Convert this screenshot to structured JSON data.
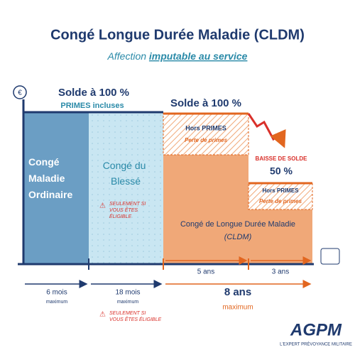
{
  "header": {
    "title": "Congé Longue Durée Maladie (CLDM)",
    "subtitle_prefix": "Affection",
    "subtitle_emphasis": "imputable au service"
  },
  "phases": [
    {
      "pay": "Solde à 100 %",
      "pay_note": "PRIMES incluses",
      "label_lines": [
        "Congé",
        "Maladie",
        "Ordinaire"
      ],
      "duration": "6 mois",
      "duration_note": "maximum"
    },
    {
      "label_lines": [
        "Congé du",
        "Blessé"
      ],
      "warning_lines": [
        "SEULEMENT SI",
        "VOUS ÊTES",
        "ÉLIGIBLE"
      ],
      "duration": "18 mois",
      "duration_note": "maximum",
      "footnote_lines": [
        "SEULEMENT SI",
        "VOUS ÊTES ÉLIGIBLE"
      ]
    },
    {
      "pay": "Solde à 100 %",
      "loss_title": "Hors PRIMES",
      "loss_note": "Perte de primes",
      "sub_duration": "5 ans"
    },
    {
      "drop_title": "BAISSE DE SOLDE",
      "drop_value": "50 %",
      "loss_title": "Hors PRIMES",
      "loss_note": "Perte de primes",
      "sub_duration": "3 ans"
    }
  ],
  "cldm": {
    "label": "Congé de Longue Durée Maladie",
    "abbr": "(CLDM)",
    "duration": "8 ans",
    "duration_note": "maximum"
  },
  "logo": {
    "name": "AGPM",
    "tagline": "L'EXPERT PRÉVOYANCE MILITAIRE"
  }
}
